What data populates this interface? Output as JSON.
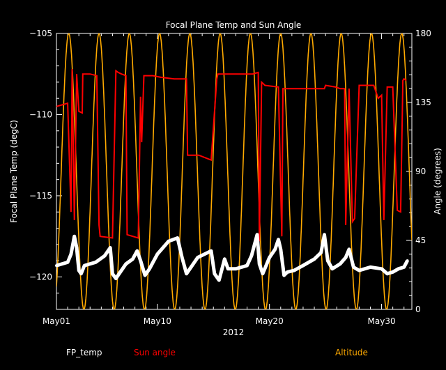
{
  "chart_data": {
    "type": "line",
    "title": "Focal Plane Temp and Sun Angle",
    "xlabel": "2012",
    "ylabel_left": "Focal Plane Temp (degC)",
    "ylabel_right": "Angle (degrees)",
    "x_unit": "day of May 2012",
    "xlim": [
      1,
      32.7
    ],
    "ylim_left": [
      -122.0,
      -105.0
    ],
    "ylim_right": [
      0,
      180
    ],
    "x_ticks": [
      {
        "value": 1,
        "label": "May01"
      },
      {
        "value": 10,
        "label": "May10"
      },
      {
        "value": 20,
        "label": "May20"
      },
      {
        "value": 30,
        "label": "May30"
      }
    ],
    "y_ticks_left": [
      -105,
      -110,
      -115,
      -120
    ],
    "y_ticks_right": [
      0,
      45,
      90,
      135,
      180
    ],
    "legend_placement": "bottom",
    "colors": {
      "background": "#000000",
      "axes": "#ffffff",
      "fp_temp": "#ffffff",
      "sun_angle": "#ff0000",
      "altitude": "#ffaa00"
    },
    "series": [
      {
        "name": "FP_temp",
        "axis": "left",
        "x": [
          1.0,
          2.0,
          2.3,
          2.6,
          2.8,
          3.0,
          3.2,
          3.5,
          4.5,
          5.3,
          5.8,
          6.0,
          6.3,
          6.8,
          7.2,
          7.8,
          8.2,
          8.5,
          8.9,
          9.3,
          10.0,
          11.0,
          11.8,
          12.2,
          12.6,
          13.0,
          13.6,
          14.2,
          14.8,
          15.1,
          15.5,
          16.0,
          16.3,
          17.0,
          18.0,
          18.4,
          18.9,
          19.1,
          19.4,
          20.0,
          20.5,
          20.8,
          21.0,
          21.3,
          21.6,
          22.2,
          23.0,
          24.0,
          24.6,
          24.9,
          25.2,
          25.6,
          26.3,
          26.8,
          27.1,
          27.5,
          28.0,
          29.0,
          30.0,
          30.5,
          31.0,
          31.5,
          32.0,
          32.3
        ],
        "values": [
          -119.3,
          -119.1,
          -118.6,
          -117.5,
          -118.2,
          -119.6,
          -119.8,
          -119.3,
          -119.1,
          -118.7,
          -118.2,
          -119.8,
          -120.1,
          -119.6,
          -119.2,
          -118.9,
          -118.4,
          -119.0,
          -119.9,
          -119.5,
          -118.6,
          -117.8,
          -117.6,
          -118.8,
          -119.8,
          -119.4,
          -118.8,
          -118.6,
          -118.4,
          -119.8,
          -120.2,
          -118.9,
          -119.5,
          -119.5,
          -119.3,
          -118.7,
          -117.4,
          -119.2,
          -119.8,
          -118.8,
          -118.3,
          -117.7,
          -118.3,
          -119.9,
          -119.7,
          -119.6,
          -119.3,
          -118.9,
          -118.5,
          -117.4,
          -119.0,
          -119.5,
          -119.2,
          -118.8,
          -118.3,
          -119.4,
          -119.6,
          -119.4,
          -119.5,
          -119.8,
          -119.7,
          -119.5,
          -119.4,
          -119.0
        ]
      },
      {
        "name": "Sun angle",
        "axis": "left",
        "x": [
          1.0,
          2.0,
          2.3,
          2.4,
          2.6,
          2.8,
          3.0,
          3.3,
          3.35,
          4.0,
          4.6,
          4.8,
          4.9,
          6.0,
          6.3,
          6.5,
          6.8,
          7.2,
          7.3,
          8.3,
          8.5,
          8.6,
          8.8,
          9.1,
          9.6,
          10.3,
          11.5,
          12.6,
          12.7,
          13.7,
          14.8,
          15.3,
          15.4,
          16.9,
          18.5,
          19.0,
          19.1,
          19.3,
          19.6,
          20.8,
          21.1,
          21.2,
          21.4,
          22.0,
          23.5,
          24.9,
          25.0,
          25.9,
          26.3,
          26.7,
          26.8,
          27.1,
          27.4,
          27.6,
          28.0,
          29.3,
          29.7,
          30.0,
          30.2,
          30.5,
          31.0,
          31.4,
          31.7,
          31.9,
          32.0,
          32.2
        ],
        "values": [
          -109.5,
          -109.3,
          -116.0,
          -107.2,
          -116.5,
          -107.5,
          -109.8,
          -109.9,
          -107.5,
          -107.5,
          -107.6,
          -116.8,
          -117.5,
          -117.6,
          -107.3,
          -107.4,
          -107.5,
          -107.6,
          -117.4,
          -117.6,
          -108.9,
          -111.7,
          -107.6,
          -107.6,
          -107.6,
          -107.7,
          -107.8,
          -107.8,
          -112.5,
          -112.5,
          -112.8,
          -107.8,
          -107.5,
          -107.5,
          -107.5,
          -107.4,
          -117.8,
          -108.0,
          -108.2,
          -108.3,
          -117.5,
          -108.4,
          -108.4,
          -108.4,
          -108.4,
          -108.4,
          -108.2,
          -108.3,
          -108.4,
          -108.4,
          -116.8,
          -108.4,
          -116.6,
          -116.4,
          -108.2,
          -108.2,
          -109.0,
          -108.8,
          -116.5,
          -108.3,
          -108.3,
          -115.9,
          -116.0,
          -107.9,
          -107.8,
          -107.9
        ]
      },
      {
        "name": "Altitude",
        "axis": "right",
        "type": "periodic",
        "orbit_period_days": 2.7,
        "first_peak_day": 2.1,
        "min": 0,
        "max": 180,
        "description_shape": "cosine"
      }
    ]
  }
}
